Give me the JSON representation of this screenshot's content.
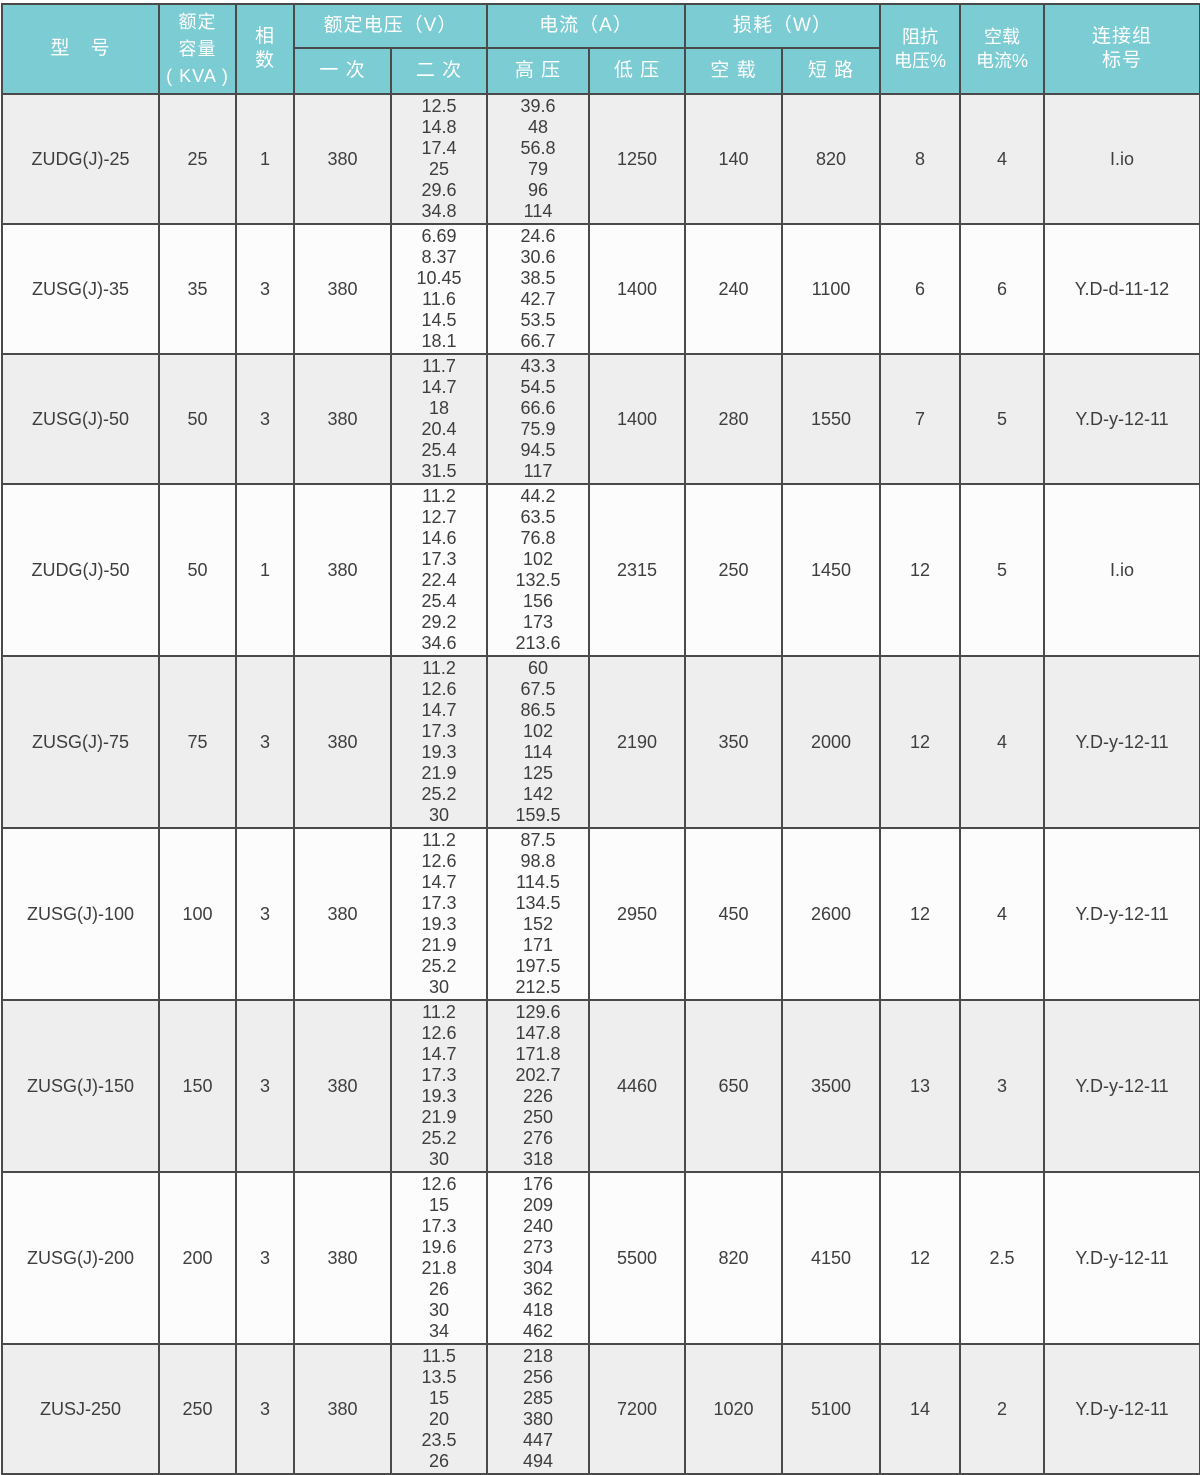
{
  "table": {
    "header": {
      "model": "型　号",
      "capacity": "额定\n容量\n( KVA )",
      "phases": "相\n数",
      "rated_voltage": "额定电压（V）",
      "current": "电流（A）",
      "loss": "损耗（W）",
      "primary": "一 次",
      "secondary": "二 次",
      "high_voltage": "高 压",
      "low_voltage": "低 压",
      "no_load_loss": "空 载",
      "short_circuit": "短 路",
      "impedance_voltage": "阻抗\n电压%",
      "no_load_current": "空载\n电流%",
      "connection_group": "连接组\n标号"
    },
    "rows": [
      {
        "model": "ZUDG(J)-25",
        "capacity": "25",
        "phases": "1",
        "primary": "380",
        "secondary": [
          "12.5",
          "14.8",
          "17.4",
          "25",
          "29.6",
          "34.8"
        ],
        "hv_current": [
          "39.6",
          "48",
          "56.8",
          "79",
          "96",
          "114"
        ],
        "lv_current": "1250",
        "no_load_loss": "140",
        "short_circuit_loss": "820",
        "impedance": "8",
        "no_load_current": "4",
        "connection": "I.io"
      },
      {
        "model": "ZUSG(J)-35",
        "capacity": "35",
        "phases": "3",
        "primary": "380",
        "secondary": [
          "6.69",
          "8.37",
          "10.45",
          "11.6",
          "14.5",
          "18.1"
        ],
        "hv_current": [
          "24.6",
          "30.6",
          "38.5",
          "42.7",
          "53.5",
          "66.7"
        ],
        "lv_current": "1400",
        "no_load_loss": "240",
        "short_circuit_loss": "1100",
        "impedance": "6",
        "no_load_current": "6",
        "connection": "Y.D-d-11-12"
      },
      {
        "model": "ZUSG(J)-50",
        "capacity": "50",
        "phases": "3",
        "primary": "380",
        "secondary": [
          "11.7",
          "14.7",
          "18",
          "20.4",
          "25.4",
          "31.5"
        ],
        "hv_current": [
          "43.3",
          "54.5",
          "66.6",
          "75.9",
          "94.5",
          "117"
        ],
        "lv_current": "1400",
        "no_load_loss": "280",
        "short_circuit_loss": "1550",
        "impedance": "7",
        "no_load_current": "5",
        "connection": "Y.D-y-12-11"
      },
      {
        "model": "ZUDG(J)-50",
        "capacity": "50",
        "phases": "1",
        "primary": "380",
        "secondary": [
          "11.2",
          "12.7",
          "14.6",
          "17.3",
          "22.4",
          "25.4",
          "29.2",
          "34.6"
        ],
        "hv_current": [
          "44.2",
          "63.5",
          "76.8",
          "102",
          "132.5",
          "156",
          "173",
          "213.6"
        ],
        "lv_current": "2315",
        "no_load_loss": "250",
        "short_circuit_loss": "1450",
        "impedance": "12",
        "no_load_current": "5",
        "connection": "I.io"
      },
      {
        "model": "ZUSG(J)-75",
        "capacity": "75",
        "phases": "3",
        "primary": "380",
        "secondary": [
          "11.2",
          "12.6",
          "14.7",
          "17.3",
          "19.3",
          "21.9",
          "25.2",
          "30"
        ],
        "hv_current": [
          "60",
          "67.5",
          "86.5",
          "102",
          "114",
          "125",
          "142",
          "159.5"
        ],
        "lv_current": "2190",
        "no_load_loss": "350",
        "short_circuit_loss": "2000",
        "impedance": "12",
        "no_load_current": "4",
        "connection": "Y.D-y-12-11"
      },
      {
        "model": "ZUSG(J)-100",
        "capacity": "100",
        "phases": "3",
        "primary": "380",
        "secondary": [
          "11.2",
          "12.6",
          "14.7",
          "17.3",
          "19.3",
          "21.9",
          "25.2",
          "30"
        ],
        "hv_current": [
          "87.5",
          "98.8",
          "114.5",
          "134.5",
          "152",
          "171",
          "197.5",
          "212.5"
        ],
        "lv_current": "2950",
        "no_load_loss": "450",
        "short_circuit_loss": "2600",
        "impedance": "12",
        "no_load_current": "4",
        "connection": "Y.D-y-12-11"
      },
      {
        "model": "ZUSG(J)-150",
        "capacity": "150",
        "phases": "3",
        "primary": "380",
        "secondary": [
          "11.2",
          "12.6",
          "14.7",
          "17.3",
          "19.3",
          "21.9",
          "25.2",
          "30"
        ],
        "hv_current": [
          "129.6",
          "147.8",
          "171.8",
          "202.7",
          "226",
          "250",
          "276",
          "318"
        ],
        "lv_current": "4460",
        "no_load_loss": "650",
        "short_circuit_loss": "3500",
        "impedance": "13",
        "no_load_current": "3",
        "connection": "Y.D-y-12-11"
      },
      {
        "model": "ZUSG(J)-200",
        "capacity": "200",
        "phases": "3",
        "primary": "380",
        "secondary": [
          "12.6",
          "15",
          "17.3",
          "19.6",
          "21.8",
          "26",
          "30",
          "34"
        ],
        "hv_current": [
          "176",
          "209",
          "240",
          "273",
          "304",
          "362",
          "418",
          "462"
        ],
        "lv_current": "5500",
        "no_load_loss": "820",
        "short_circuit_loss": "4150",
        "impedance": "12",
        "no_load_current": "2.5",
        "connection": "Y.D-y-12-11"
      },
      {
        "model": "ZUSJ-250",
        "capacity": "250",
        "phases": "3",
        "primary": "380",
        "secondary": [
          "11.5",
          "13.5",
          "15",
          "20",
          "23.5",
          "26"
        ],
        "hv_current": [
          "218",
          "256",
          "285",
          "380",
          "447",
          "494"
        ],
        "lv_current": "7200",
        "no_load_loss": "1020",
        "short_circuit_loss": "5100",
        "impedance": "14",
        "no_load_current": "2",
        "connection": "Y.D-y-12-11"
      }
    ]
  },
  "colors": {
    "header_bg": "#7cccd3",
    "header_text": "#ffffff",
    "border": "#4a4a4a",
    "row_bg": "#fcfcfc",
    "row_alt_bg": "#eeeeee",
    "text": "#3e3e3e"
  }
}
